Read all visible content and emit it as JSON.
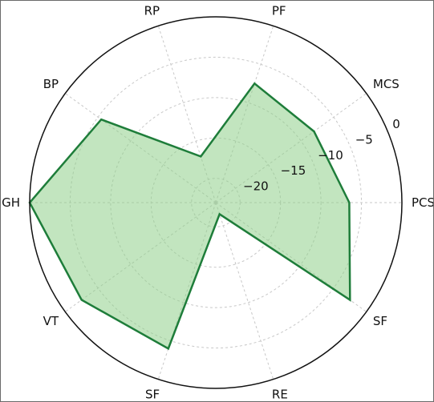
{
  "chart_data": {
    "type": "radar",
    "title": "",
    "categories": [
      "PCS",
      "MCS",
      "PF",
      "RP",
      "BP",
      "GH",
      "VT",
      "SF",
      "RE",
      "SF"
    ],
    "series": [
      {
        "values": [
          -6.5,
          -8.0,
          -7.5,
          -17.0,
          -5.5,
          0.0,
          -2.5,
          -4.0,
          -21.5,
          -2.5
        ]
      }
    ],
    "rlim": [
      -23,
      0
    ],
    "r_ticks": [
      -20,
      -15,
      -10,
      -5,
      0
    ],
    "r_tick_labels": [
      "−20",
      "−15",
      "−10",
      "−5",
      "0"
    ],
    "grid": true,
    "colors": {
      "line": "#1e7d3a",
      "fill": "#8fcf8a",
      "grid": "#c8c8c8",
      "frame": "#111111"
    }
  }
}
